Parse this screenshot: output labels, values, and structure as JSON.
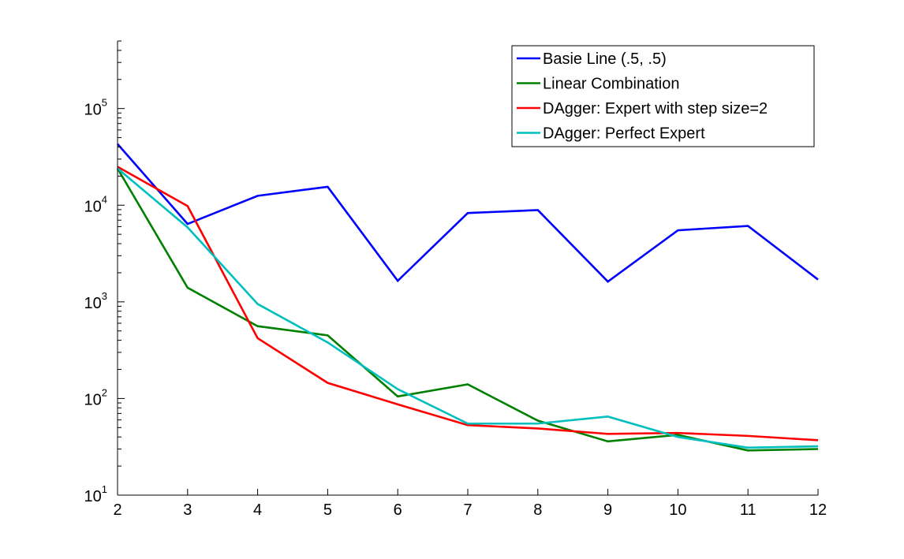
{
  "chart_data": {
    "type": "line",
    "title": "",
    "xlabel": "",
    "ylabel": "",
    "x": [
      2,
      3,
      4,
      5,
      6,
      7,
      8,
      9,
      10,
      11,
      12
    ],
    "xlim": [
      2,
      12
    ],
    "ylim": [
      10,
      500000
    ],
    "y_scale": "log",
    "x_ticks": [
      "2",
      "3",
      "4",
      "5",
      "6",
      "7",
      "8",
      "9",
      "10",
      "11",
      "12"
    ],
    "y_ticks": [
      {
        "base": "10",
        "exp": "1",
        "value": 10
      },
      {
        "base": "10",
        "exp": "2",
        "value": 100
      },
      {
        "base": "10",
        "exp": "3",
        "value": 1000
      },
      {
        "base": "10",
        "exp": "4",
        "value": 10000
      },
      {
        "base": "10",
        "exp": "5",
        "value": 100000
      }
    ],
    "grid": false,
    "legend_position": "top-right",
    "series": [
      {
        "name": "Basie Line (.5, .5)",
        "color": "#0000ff",
        "values": [
          43000,
          6400,
          12500,
          15500,
          1650,
          8300,
          8900,
          1620,
          5500,
          6100,
          1700
        ]
      },
      {
        "name": "Linear Combination",
        "color": "#008000",
        "values": [
          24000,
          1400,
          560,
          450,
          105,
          140,
          59,
          36,
          42,
          29,
          30
        ]
      },
      {
        "name": "DAgger: Expert with step size=2",
        "color": "#ff0000",
        "values": [
          25000,
          9800,
          420,
          145,
          87,
          53,
          49,
          43,
          44,
          41,
          37
        ]
      },
      {
        "name": "DAgger: Perfect Expert",
        "color": "#00bfbf",
        "values": [
          24000,
          5900,
          950,
          380,
          125,
          55,
          55,
          65,
          40,
          31,
          32
        ]
      }
    ]
  }
}
